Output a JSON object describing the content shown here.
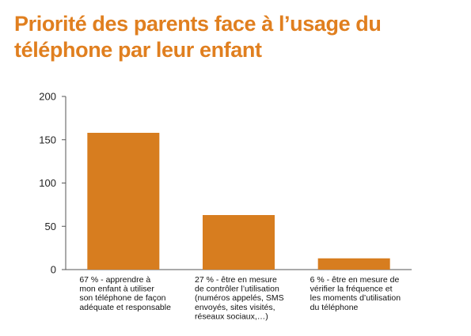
{
  "colors": {
    "accent": "#e07f1f",
    "bar": "#d77d1f",
    "axis": "#555555",
    "grid": "#d9d9d9"
  },
  "chart_data": {
    "type": "bar",
    "title": "Priorité des parents face à l’usage du téléphone par leur enfant",
    "xlabel": "",
    "ylabel": "",
    "ylim": [
      0,
      200
    ],
    "yticks": [
      0,
      50,
      100,
      150,
      200
    ],
    "grid": false,
    "legend": "none",
    "categories": [
      "67 % - apprendre à mon enfant à utiliser son téléphone de façon adéquate et responsable",
      "27 % - être en mesure de contrôler l’utilisation (numéros appelés, SMS envoyés, sites visités, réseaux sociaux,…)",
      "6 % - être en mesure de vérifier la fréquence et les moments d’utilisation du téléphone"
    ],
    "category_lines": [
      [
        "67 % - apprendre à",
        "mon enfant à utiliser",
        "son téléphone de façon",
        "adéquate et responsable"
      ],
      [
        "27 % - être en mesure",
        "de contrôler l’utilisation",
        "(numéros appelés, SMS",
        "envoyés, sites visités,",
        "réseaux sociaux,…)"
      ],
      [
        "6 % - être en mesure de",
        "vérifier la fréquence et",
        "les moments d’utilisation",
        "du téléphone"
      ]
    ],
    "values": [
      158,
      63,
      13
    ]
  }
}
